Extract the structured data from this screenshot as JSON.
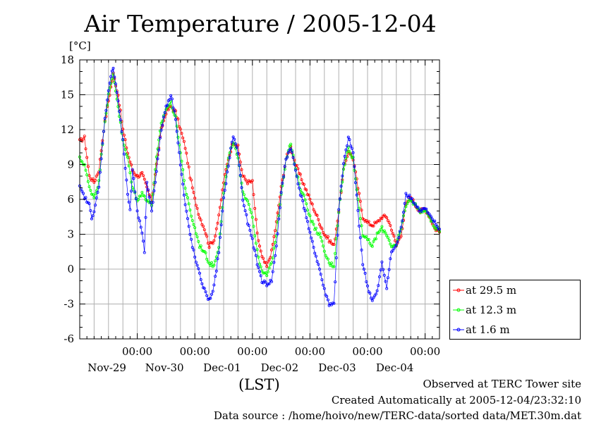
{
  "chart_data": {
    "type": "line",
    "title": "Air Temperature / 2005-12-04",
    "ylabel": "[°C]",
    "xlabel": "(LST)",
    "ylim": [
      -6,
      18
    ],
    "yticks": [
      -6,
      -3,
      0,
      3,
      6,
      9,
      12,
      15,
      18
    ],
    "xlim_hours": [
      0,
      144
    ],
    "x_ticks": [
      {
        "time": "00:00",
        "date": "Nov-29",
        "hour": 24
      },
      {
        "time": "00:00",
        "date": "Nov-30",
        "hour": 48
      },
      {
        "time": "00:00",
        "date": "Dec-01",
        "hour": 72
      },
      {
        "time": "00:00",
        "date": "Dec-02",
        "hour": 96
      },
      {
        "time": "00:00",
        "date": "Dec-03",
        "hour": 120
      },
      {
        "time": "00:00",
        "date": "Dec-04",
        "hour": 144
      }
    ],
    "grid": true,
    "legend_position": "right",
    "series": [
      {
        "name": "at 29.5 m",
        "color": "#ff0000",
        "knots": [
          [
            0,
            11.0
          ],
          [
            2,
            11.3
          ],
          [
            4,
            8.0
          ],
          [
            6,
            7.5
          ],
          [
            8,
            8.5
          ],
          [
            10,
            12.0
          ],
          [
            12,
            14.5
          ],
          [
            14,
            16.8
          ],
          [
            16,
            15.0
          ],
          [
            18,
            12.0
          ],
          [
            20,
            10.0
          ],
          [
            22,
            8.5
          ],
          [
            24,
            8.0
          ],
          [
            26,
            8.2
          ],
          [
            28,
            7.0
          ],
          [
            30,
            5.8
          ],
          [
            32,
            9.0
          ],
          [
            34,
            12.0
          ],
          [
            36,
            13.5
          ],
          [
            38,
            14.0
          ],
          [
            40,
            13.5
          ],
          [
            42,
            12.0
          ],
          [
            44,
            10.5
          ],
          [
            46,
            8.0
          ],
          [
            48,
            6.0
          ],
          [
            50,
            4.5
          ],
          [
            52,
            3.5
          ],
          [
            54,
            2.0
          ],
          [
            56,
            2.5
          ],
          [
            58,
            4.5
          ],
          [
            60,
            7.5
          ],
          [
            62,
            9.5
          ],
          [
            64,
            11.0
          ],
          [
            66,
            10.5
          ],
          [
            68,
            8.0
          ],
          [
            70,
            7.5
          ],
          [
            72,
            7.5
          ],
          [
            74,
            3.0
          ],
          [
            76,
            1.0
          ],
          [
            78,
            0.2
          ],
          [
            80,
            1.5
          ],
          [
            82,
            4.0
          ],
          [
            84,
            7.0
          ],
          [
            86,
            9.5
          ],
          [
            88,
            10.5
          ],
          [
            90,
            9.0
          ],
          [
            92,
            8.0
          ],
          [
            94,
            7.0
          ],
          [
            96,
            6.0
          ],
          [
            98,
            5.0
          ],
          [
            100,
            4.0
          ],
          [
            102,
            3.0
          ],
          [
            104,
            2.5
          ],
          [
            106,
            2.0
          ],
          [
            108,
            5.0
          ],
          [
            110,
            8.5
          ],
          [
            112,
            10.2
          ],
          [
            114,
            9.5
          ],
          [
            116,
            7.0
          ],
          [
            118,
            4.5
          ],
          [
            120,
            4.0
          ],
          [
            122,
            3.8
          ],
          [
            124,
            4.0
          ],
          [
            126,
            4.5
          ],
          [
            128,
            4.5
          ],
          [
            130,
            3.5
          ],
          [
            132,
            2.0
          ],
          [
            134,
            3.0
          ],
          [
            136,
            5.5
          ],
          [
            138,
            6.2
          ],
          [
            140,
            5.5
          ],
          [
            142,
            5.0
          ],
          [
            144,
            5.2
          ],
          [
            146,
            4.5
          ],
          [
            148,
            3.5
          ],
          [
            150,
            3.2
          ]
        ]
      },
      {
        "name": "at 12.3 m",
        "color": "#00ff00",
        "knots": [
          [
            0,
            9.5
          ],
          [
            2,
            9.0
          ],
          [
            4,
            7.0
          ],
          [
            6,
            6.2
          ],
          [
            8,
            7.5
          ],
          [
            10,
            12.0
          ],
          [
            12,
            15.0
          ],
          [
            14,
            16.8
          ],
          [
            16,
            14.0
          ],
          [
            18,
            11.0
          ],
          [
            20,
            9.5
          ],
          [
            22,
            7.0
          ],
          [
            24,
            6.0
          ],
          [
            26,
            6.5
          ],
          [
            28,
            6.0
          ],
          [
            30,
            5.5
          ],
          [
            32,
            9.5
          ],
          [
            34,
            12.5
          ],
          [
            36,
            13.8
          ],
          [
            38,
            14.3
          ],
          [
            40,
            13.0
          ],
          [
            42,
            10.0
          ],
          [
            44,
            7.0
          ],
          [
            46,
            5.0
          ],
          [
            48,
            3.5
          ],
          [
            50,
            2.0
          ],
          [
            52,
            1.5
          ],
          [
            54,
            0.5
          ],
          [
            56,
            0.3
          ],
          [
            58,
            2.0
          ],
          [
            60,
            6.5
          ],
          [
            62,
            9.5
          ],
          [
            64,
            11.0
          ],
          [
            66,
            9.5
          ],
          [
            68,
            6.5
          ],
          [
            70,
            6.0
          ],
          [
            72,
            4.5
          ],
          [
            74,
            1.5
          ],
          [
            76,
            -0.3
          ],
          [
            78,
            -0.5
          ],
          [
            80,
            0.5
          ],
          [
            82,
            3.0
          ],
          [
            84,
            6.5
          ],
          [
            86,
            9.5
          ],
          [
            88,
            10.8
          ],
          [
            90,
            8.5
          ],
          [
            92,
            7.0
          ],
          [
            94,
            6.0
          ],
          [
            96,
            4.5
          ],
          [
            98,
            3.5
          ],
          [
            100,
            3.0
          ],
          [
            102,
            1.5
          ],
          [
            104,
            0.5
          ],
          [
            106,
            0.3
          ],
          [
            108,
            5.0
          ],
          [
            110,
            8.5
          ],
          [
            112,
            10.5
          ],
          [
            114,
            9.5
          ],
          [
            116,
            6.0
          ],
          [
            118,
            3.0
          ],
          [
            120,
            2.5
          ],
          [
            122,
            2.0
          ],
          [
            124,
            3.0
          ],
          [
            126,
            3.5
          ],
          [
            128,
            3.0
          ],
          [
            130,
            2.0
          ],
          [
            132,
            2.0
          ],
          [
            134,
            3.5
          ],
          [
            136,
            5.5
          ],
          [
            138,
            6.0
          ],
          [
            140,
            5.5
          ],
          [
            142,
            5.0
          ],
          [
            144,
            5.0
          ],
          [
            146,
            4.5
          ],
          [
            148,
            3.5
          ],
          [
            150,
            3.4
          ]
        ]
      },
      {
        "name": "at 1.6 m",
        "color": "#0000ff",
        "knots": [
          [
            0,
            7.0
          ],
          [
            2,
            6.2
          ],
          [
            4,
            5.5
          ],
          [
            5,
            4.5
          ],
          [
            6,
            5.0
          ],
          [
            8,
            7.0
          ],
          [
            10,
            12.0
          ],
          [
            12,
            15.5
          ],
          [
            14,
            17.4
          ],
          [
            16,
            14.5
          ],
          [
            18,
            11.0
          ],
          [
            20,
            6.5
          ],
          [
            21,
            5.0
          ],
          [
            22,
            8.5
          ],
          [
            24,
            5.0
          ],
          [
            26,
            3.0
          ],
          [
            27,
            1.5
          ],
          [
            28,
            7.5
          ],
          [
            30,
            5.0
          ],
          [
            32,
            8.5
          ],
          [
            34,
            12.0
          ],
          [
            36,
            14.0
          ],
          [
            38,
            15.0
          ],
          [
            40,
            13.0
          ],
          [
            42,
            9.0
          ],
          [
            44,
            5.5
          ],
          [
            46,
            3.0
          ],
          [
            48,
            1.0
          ],
          [
            50,
            -0.5
          ],
          [
            52,
            -1.8
          ],
          [
            54,
            -2.7
          ],
          [
            56,
            -1.5
          ],
          [
            58,
            1.5
          ],
          [
            60,
            6.0
          ],
          [
            62,
            9.0
          ],
          [
            64,
            11.5
          ],
          [
            66,
            10.0
          ],
          [
            68,
            6.0
          ],
          [
            70,
            4.0
          ],
          [
            72,
            2.5
          ],
          [
            74,
            0.5
          ],
          [
            76,
            -1.0
          ],
          [
            78,
            -1.3
          ],
          [
            80,
            -1.0
          ],
          [
            82,
            2.0
          ],
          [
            84,
            6.5
          ],
          [
            86,
            9.5
          ],
          [
            88,
            10.5
          ],
          [
            90,
            8.5
          ],
          [
            92,
            6.5
          ],
          [
            94,
            5.0
          ],
          [
            96,
            3.0
          ],
          [
            98,
            1.5
          ],
          [
            100,
            0.0
          ],
          [
            102,
            -1.8
          ],
          [
            104,
            -3.0
          ],
          [
            106,
            -3.0
          ],
          [
            108,
            5.0
          ],
          [
            110,
            9.0
          ],
          [
            112,
            11.3
          ],
          [
            114,
            10.0
          ],
          [
            116,
            5.0
          ],
          [
            118,
            0.5
          ],
          [
            120,
            -1.5
          ],
          [
            122,
            -2.7
          ],
          [
            124,
            -2.0
          ],
          [
            126,
            0.5
          ],
          [
            128,
            -1.5
          ],
          [
            130,
            1.5
          ],
          [
            132,
            2.0
          ],
          [
            134,
            3.5
          ],
          [
            136,
            6.5
          ],
          [
            138,
            6.2
          ],
          [
            140,
            5.5
          ],
          [
            142,
            5.0
          ],
          [
            144,
            5.2
          ],
          [
            146,
            4.5
          ],
          [
            148,
            4.0
          ],
          [
            150,
            3.4
          ]
        ]
      }
    ]
  },
  "footer": {
    "site": "Observed at TERC Tower site",
    "created": "Created Automatically at 2005-12-04/23:32:10",
    "source": "Data source : /home/hoivo/new/TERC-data/sorted  data/MET.30m.dat"
  }
}
